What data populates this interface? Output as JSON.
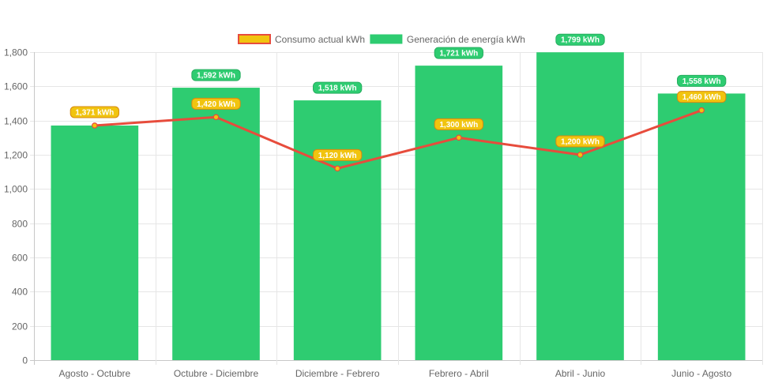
{
  "chart_data": {
    "type": "bar",
    "title": "",
    "xlabel": "",
    "ylabel": "",
    "categories": [
      "Agosto - Octubre",
      "Octubre - Diciembre",
      "Diciembre - Febrero",
      "Febrero - Abril",
      "Abril - Junio",
      "Junio - Agosto"
    ],
    "series": [
      {
        "name": "Generación de energía kWh",
        "type": "bar",
        "color": "#2ecc71",
        "values": [
          1371,
          1592,
          1518,
          1721,
          1799,
          1558
        ],
        "labels": [
          "1,371 kWh",
          "1,592 kWh",
          "1,518 kWh",
          "1,721 kWh",
          "1,799 kWh",
          "1,558 kWh"
        ]
      },
      {
        "name": "Consumo actual kWh",
        "type": "line",
        "color": "#e74c3c",
        "fill_color": "#f1c40f",
        "values": [
          1371,
          1420,
          1120,
          1300,
          1200,
          1460
        ],
        "labels": [
          "1,371 kWh",
          "1,420 kWh",
          "1,120 kWh",
          "1,300 kWh",
          "1,200 kWh",
          "1,460 kWh"
        ]
      }
    ],
    "ylim": [
      0,
      1800
    ],
    "yticks": [
      0,
      200,
      400,
      600,
      800,
      1000,
      1200,
      1400,
      1600,
      1800
    ],
    "ytick_labels": [
      "0",
      "200",
      "400",
      "600",
      "800",
      "1,000",
      "1,200",
      "1,400",
      "1,600",
      "1,800"
    ],
    "grid": true,
    "legend_position": "top-center"
  }
}
